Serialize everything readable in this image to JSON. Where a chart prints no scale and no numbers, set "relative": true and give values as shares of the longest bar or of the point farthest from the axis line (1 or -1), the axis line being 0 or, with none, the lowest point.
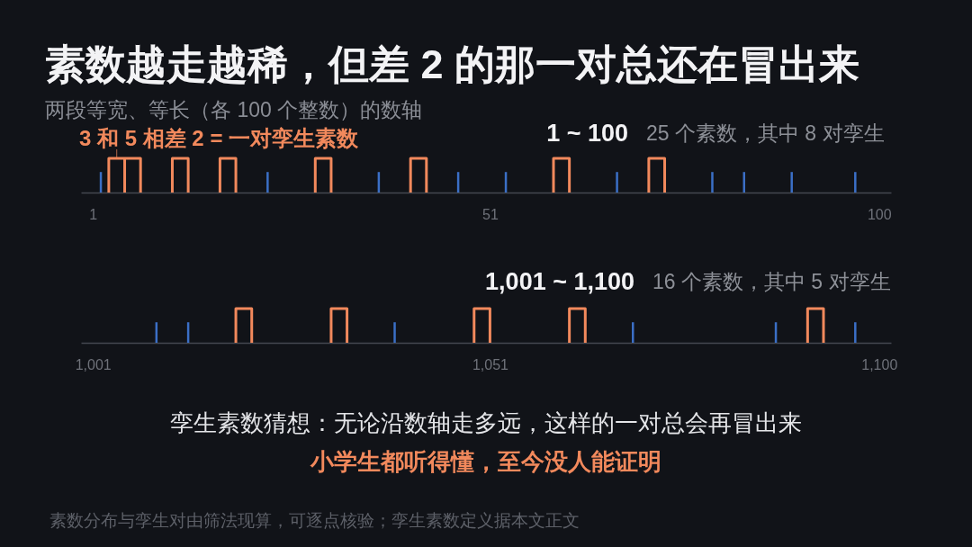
{
  "chart_data": [
    {
      "type": "bar",
      "title": "素数越走越稀，但差 2 的那一对总还在冒出来",
      "subtitle": "两段等宽、等长（各 100 个整数）的数轴",
      "relative": true,
      "xlim": [
        -0.5,
        101.5
      ],
      "xticks": [
        1,
        51,
        100
      ],
      "annotations": [
        "1 ~ 100",
        "25 个素数，其中 8 对孪生",
        {
          "text": "3 和 5 相差 2 = 一对孪生素数",
          "x": 4,
          "y": 1
        }
      ],
      "series": [
        {
          "color": "#3b6fc6",
          "x": [
            2,
            23,
            37,
            47,
            53,
            67,
            79,
            83,
            89,
            97
          ],
          "values": [
            0.6,
            0.6,
            0.6,
            0.6,
            0.6,
            0.6,
            0.6,
            0.6,
            0.6,
            0.6
          ]
        },
        {
          "type": "line",
          "color": "#f2895c",
          "x": [
            3,
            3,
            5,
            5,
            null,
            5,
            5,
            7,
            7,
            null,
            11,
            11,
            13,
            13,
            null,
            17,
            17,
            19,
            19,
            null,
            29,
            29,
            31,
            31,
            null,
            41,
            41,
            43,
            43,
            null,
            59,
            59,
            61,
            61,
            null,
            71,
            71,
            73,
            73
          ],
          "values": [
            0,
            1,
            1,
            0,
            null,
            0,
            1,
            1,
            0,
            null,
            0,
            1,
            1,
            0,
            null,
            0,
            1,
            1,
            0,
            null,
            0,
            1,
            1,
            0,
            null,
            0,
            1,
            1,
            0,
            null,
            0,
            1,
            1,
            0,
            null,
            0,
            1,
            1,
            0
          ]
        }
      ]
    },
    {
      "type": "bar",
      "relative": true,
      "xlim": [
        999.5,
        1101.5
      ],
      "xticks": [
        {
          "value": 1001,
          "label": "1,001"
        },
        {
          "value": 1051,
          "label": "1,051"
        },
        {
          "value": 1100,
          "label": "1,100"
        }
      ],
      "annotations": [
        "1,001 ~ 1,100",
        "16 个素数，其中 5 对孪生",
        "孪生素数猜想：无论沿数轴走多远，这样的一对总会再冒出来",
        "小学生都听得懂，至今没人能证明",
        "素数分布与孪生对由筛法现算，可逐点核验；孪生素数定义据本文正文"
      ],
      "series": [
        {
          "color": "#3b6fc6",
          "x": [
            1009,
            1013,
            1039,
            1069,
            1087,
            1097
          ],
          "values": [
            0.6,
            0.6,
            0.6,
            0.6,
            0.6,
            0.6
          ]
        },
        {
          "type": "line",
          "color": "#f2895c",
          "x": [
            1019,
            1019,
            1021,
            1021,
            null,
            1031,
            1031,
            1033,
            1033,
            null,
            1049,
            1049,
            1051,
            1051,
            null,
            1061,
            1061,
            1063,
            1063,
            null,
            1091,
            1091,
            1093,
            1093
          ],
          "values": [
            0,
            1,
            1,
            0,
            null,
            0,
            1,
            1,
            0,
            null,
            0,
            1,
            1,
            0,
            null,
            0,
            1,
            1,
            0,
            null,
            0,
            1,
            1,
            0
          ]
        }
      ]
    }
  ]
}
